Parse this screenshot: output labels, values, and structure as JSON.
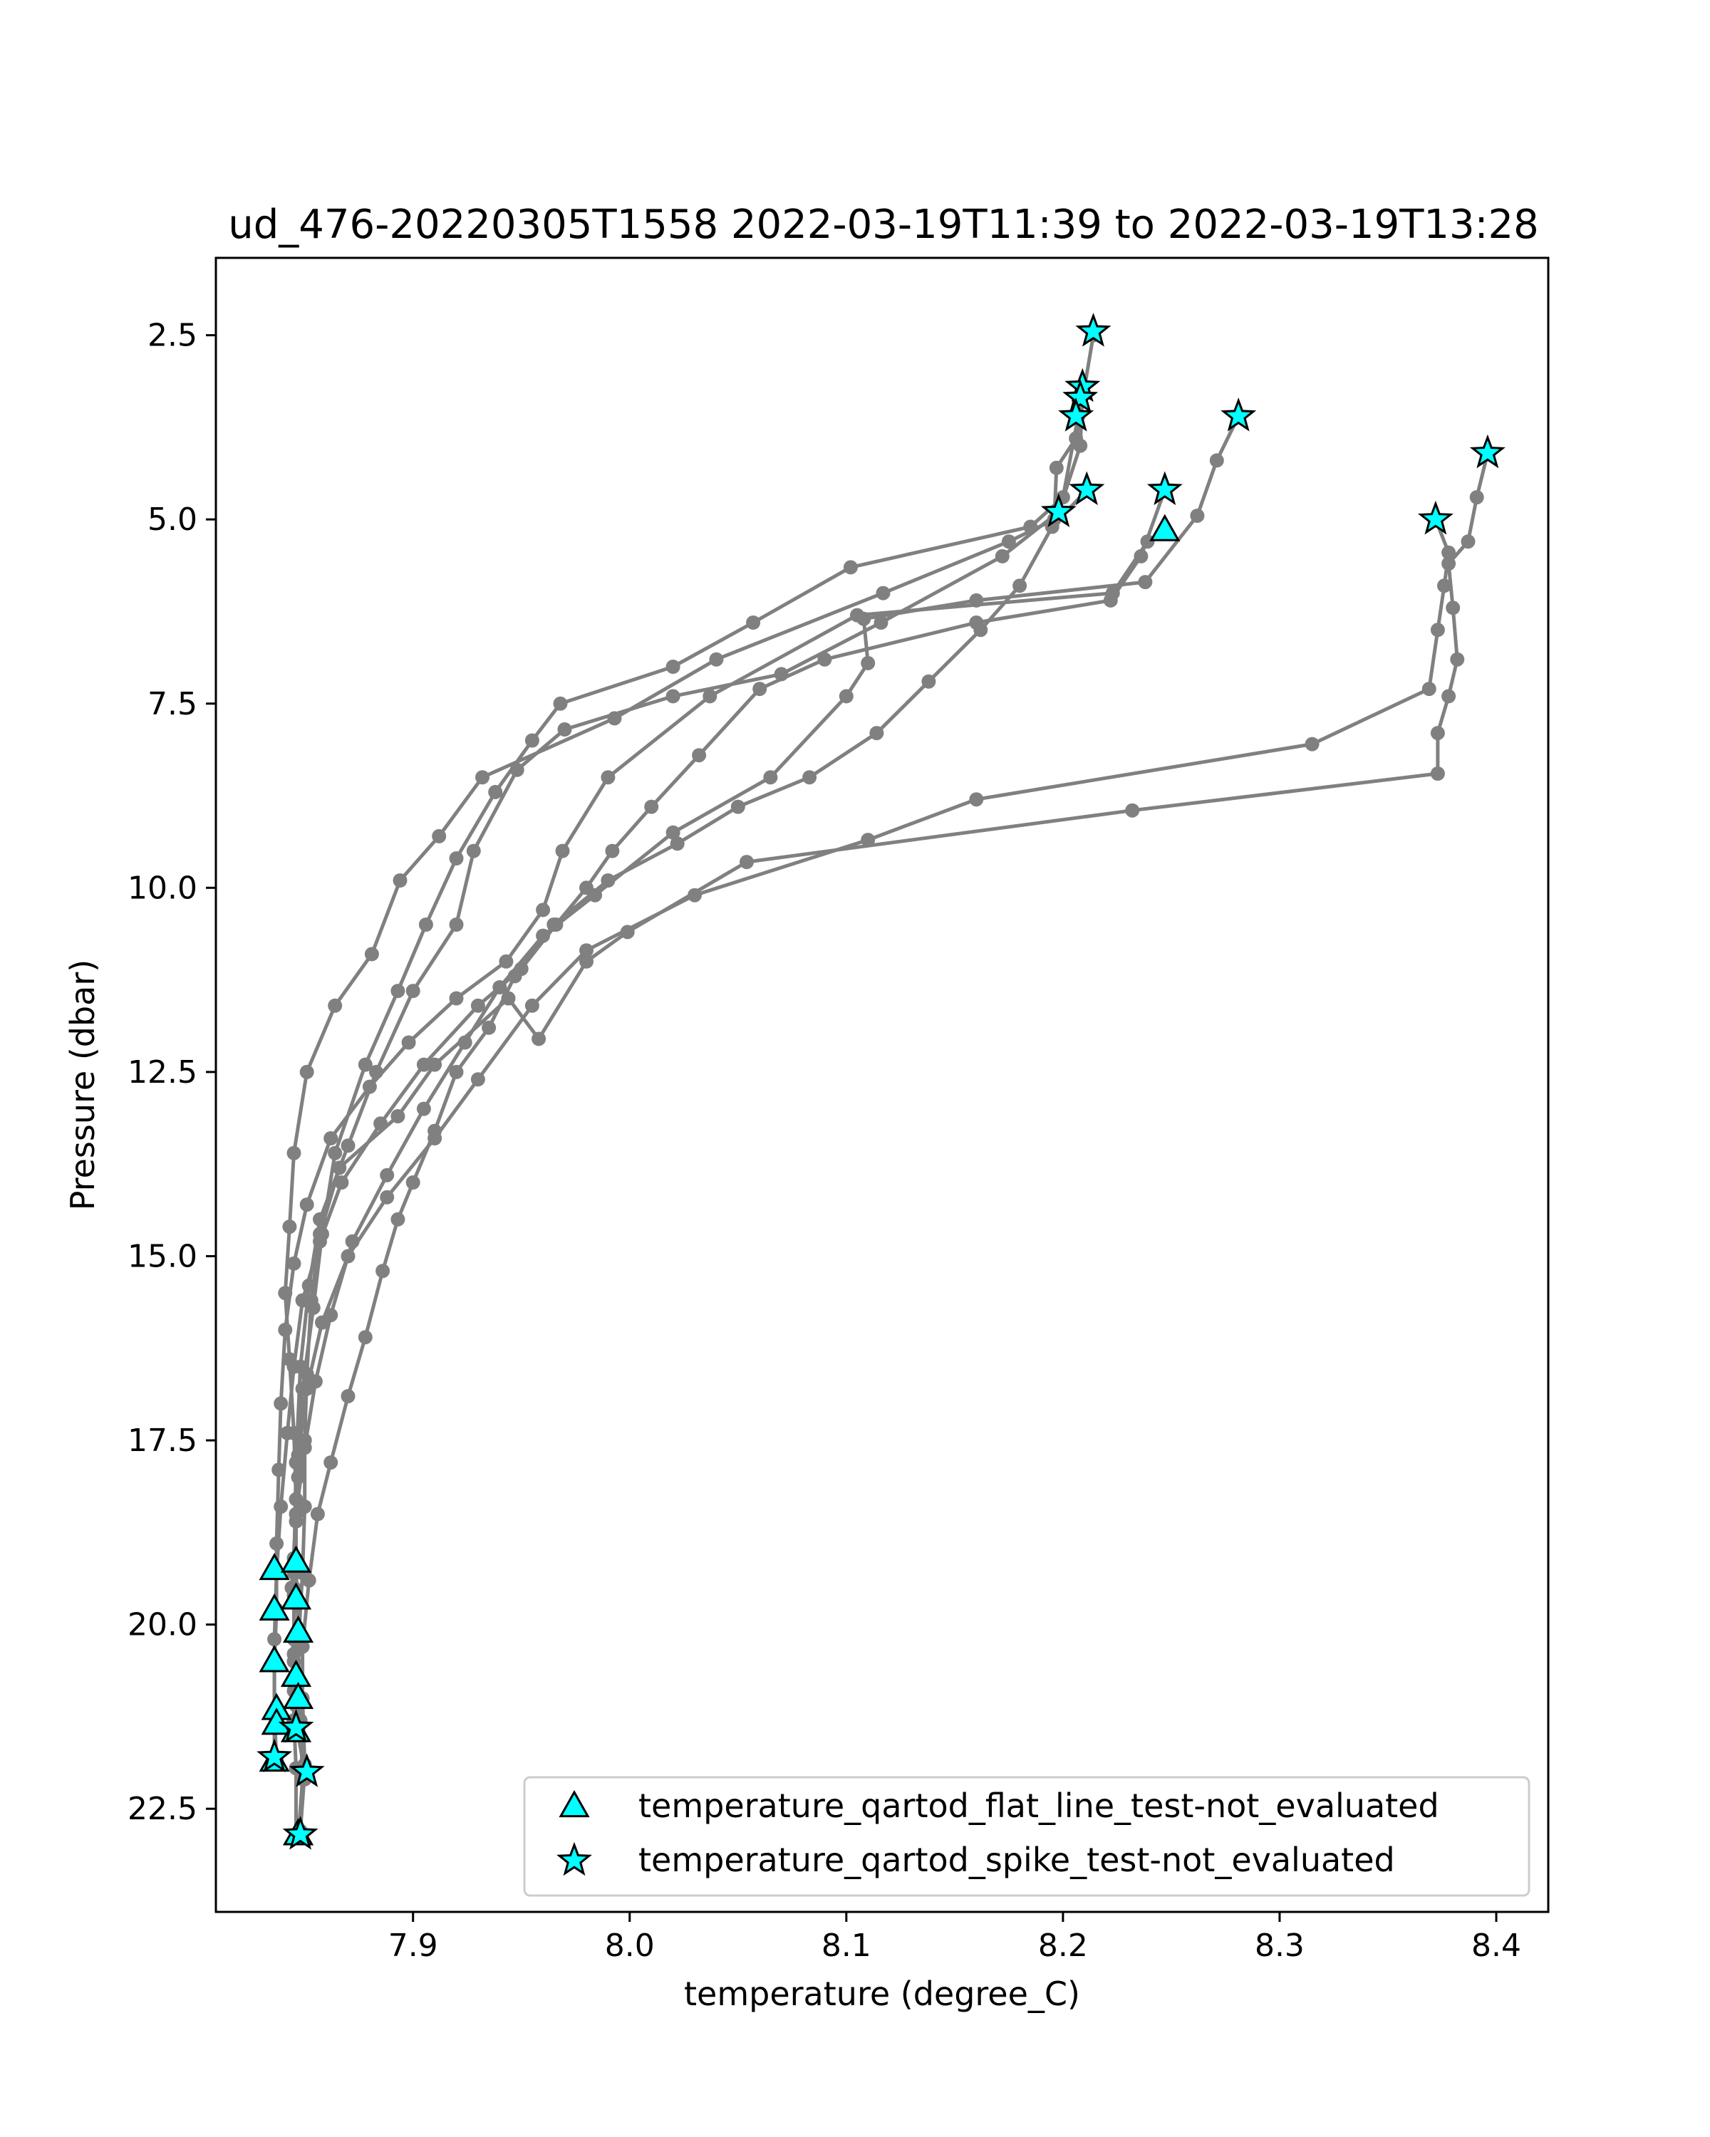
{
  "chart_data": {
    "type": "scatter",
    "title": "ud_476-20220305T1558 2022-03-19T11:39 to 2022-03-19T13:28",
    "xlabel": "temperature (degree_C)",
    "ylabel": "Pressure (dbar)",
    "xlim": [
      7.809,
      8.424
    ],
    "ylim": [
      23.9,
      1.45
    ],
    "y_inverted": true,
    "xticks": [
      "7.9",
      "8.0",
      "8.1",
      "8.2",
      "8.3",
      "8.4"
    ],
    "yticks": [
      "2.5",
      "5.0",
      "7.5",
      "10.0",
      "12.5",
      "15.0",
      "17.5",
      "20.0",
      "22.5"
    ],
    "grid": false,
    "legend_position": "lower right",
    "colors": {
      "profile": "#808080",
      "marker_fill": "#00ffff",
      "marker_edge": "#000000"
    },
    "series": [
      {
        "type": "line",
        "points": [
          [
            8.214,
            2.5
          ],
          [
            8.206,
            3.9
          ],
          [
            8.197,
            4.3
          ],
          [
            8.196,
            5.0
          ],
          [
            8.175,
            5.3
          ],
          [
            8.117,
            6.0
          ],
          [
            8.04,
            6.9
          ],
          [
            7.993,
            7.7
          ],
          [
            7.932,
            8.5
          ],
          [
            7.912,
            9.3
          ],
          [
            7.894,
            9.9
          ],
          [
            7.881,
            10.9
          ],
          [
            7.864,
            11.6
          ],
          [
            7.851,
            12.5
          ],
          [
            7.845,
            13.6
          ],
          [
            7.843,
            14.6
          ],
          [
            7.841,
            15.5
          ],
          [
            7.843,
            16.4
          ],
          [
            7.845,
            17.4
          ],
          [
            7.846,
            18.3
          ],
          [
            7.846,
            19.2
          ],
          [
            7.847,
            20.1
          ],
          [
            7.847,
            21.0
          ],
          [
            7.847,
            21.5
          ],
          [
            7.85,
            22.0
          ],
          [
            7.848,
            22.8
          ]
        ]
      },
      {
        "type": "line",
        "points": [
          [
            8.209,
            3.25
          ],
          [
            8.208,
            4.0
          ],
          [
            8.198,
            4.9
          ],
          [
            8.172,
            5.5
          ],
          [
            8.116,
            6.4
          ],
          [
            8.07,
            7.1
          ],
          [
            8.02,
            7.4
          ],
          [
            7.97,
            7.85
          ],
          [
            7.948,
            8.4
          ],
          [
            7.928,
            9.5
          ],
          [
            7.92,
            10.5
          ],
          [
            7.9,
            11.4
          ],
          [
            7.883,
            12.5
          ],
          [
            7.87,
            13.5
          ],
          [
            7.857,
            14.5
          ],
          [
            7.852,
            15.4
          ],
          [
            7.848,
            16.5
          ],
          [
            7.846,
            17.8
          ],
          [
            7.845,
            19.3
          ],
          [
            7.845,
            20.2
          ],
          [
            7.845,
            20.9
          ],
          [
            7.846,
            21.4
          ]
        ]
      },
      {
        "type": "line",
        "points": [
          [
            8.207,
            3.6
          ],
          [
            8.2,
            4.7
          ],
          [
            8.185,
            5.1
          ],
          [
            8.102,
            5.65
          ],
          [
            8.057,
            6.4
          ],
          [
            8.02,
            7.0
          ],
          [
            7.968,
            7.5
          ],
          [
            7.955,
            8.0
          ],
          [
            7.938,
            8.7
          ],
          [
            7.92,
            9.6
          ],
          [
            7.906,
            10.5
          ],
          [
            7.893,
            11.4
          ],
          [
            7.878,
            12.4
          ],
          [
            7.864,
            13.6
          ],
          [
            7.858,
            14.7
          ],
          [
            7.854,
            15.7
          ],
          [
            7.849,
            16.8
          ],
          [
            7.847,
            18.0
          ],
          [
            7.845,
            19.1
          ],
          [
            7.845,
            19.6
          ],
          [
            7.845,
            20.5
          ],
          [
            7.846,
            21.1
          ]
        ]
      },
      {
        "type": "line",
        "points": [
          [
            8.211,
            4.6
          ],
          [
            8.195,
            5.1
          ],
          [
            8.18,
            5.9
          ],
          [
            8.162,
            6.5
          ],
          [
            8.138,
            7.2
          ],
          [
            8.114,
            7.9
          ],
          [
            8.083,
            8.5
          ],
          [
            8.05,
            8.9
          ],
          [
            8.022,
            9.4
          ],
          [
            7.99,
            9.9
          ],
          [
            7.965,
            10.5
          ],
          [
            7.947,
            11.2
          ],
          [
            7.935,
            11.9
          ],
          [
            7.92,
            12.5
          ],
          [
            7.91,
            13.3
          ],
          [
            7.9,
            14.0
          ],
          [
            7.893,
            14.5
          ],
          [
            7.886,
            15.2
          ],
          [
            7.878,
            16.1
          ],
          [
            7.87,
            16.9
          ],
          [
            7.862,
            17.8
          ],
          [
            7.856,
            18.5
          ],
          [
            7.852,
            19.4
          ],
          [
            7.849,
            20.3
          ],
          [
            7.849,
            21.0
          ],
          [
            7.85,
            21.9
          ],
          [
            7.85,
            22.1
          ]
        ]
      },
      {
        "type": "line",
        "points": [
          [
            8.247,
            4.6
          ],
          [
            8.236,
            5.5
          ],
          [
            8.222,
            6.1
          ],
          [
            8.16,
            6.4
          ],
          [
            8.09,
            6.9
          ],
          [
            8.06,
            7.3
          ],
          [
            8.032,
            8.2
          ],
          [
            8.01,
            8.9
          ],
          [
            7.992,
            9.5
          ],
          [
            7.98,
            10.0
          ],
          [
            7.966,
            10.5
          ],
          [
            7.95,
            11.1
          ],
          [
            7.93,
            11.6
          ],
          [
            7.905,
            12.4
          ],
          [
            7.885,
            13.2
          ],
          [
            7.867,
            14.0
          ],
          [
            7.857,
            14.8
          ],
          [
            7.849,
            15.6
          ],
          [
            7.845,
            16.5
          ],
          [
            7.842,
            17.4
          ],
          [
            7.839,
            18.4
          ],
          [
            7.837,
            19.3
          ],
          [
            7.836,
            20.2
          ],
          [
            7.836,
            21.2
          ],
          [
            7.836,
            21.8
          ]
        ]
      },
      {
        "type": "line",
        "points": [
          [
            8.247,
            5.15
          ],
          [
            8.239,
            5.3
          ],
          [
            8.223,
            6.0
          ],
          [
            8.105,
            6.3
          ],
          [
            8.037,
            7.4
          ],
          [
            7.99,
            8.5
          ],
          [
            7.969,
            9.5
          ],
          [
            7.96,
            10.3
          ],
          [
            7.943,
            11.0
          ],
          [
            7.92,
            11.5
          ],
          [
            7.898,
            12.1
          ],
          [
            7.88,
            12.7
          ],
          [
            7.862,
            13.4
          ],
          [
            7.851,
            14.3
          ],
          [
            7.845,
            15.1
          ],
          [
            7.841,
            16.0
          ],
          [
            7.839,
            17.0
          ],
          [
            7.838,
            17.9
          ],
          [
            7.837,
            18.9
          ],
          [
            7.837,
            19.8
          ],
          [
            7.836,
            20.5
          ],
          [
            7.836,
            21.2
          ],
          [
            7.837,
            21.85
          ]
        ]
      },
      {
        "type": "line",
        "points": [
          [
            8.281,
            3.6
          ],
          [
            8.271,
            4.2
          ],
          [
            8.262,
            4.95
          ],
          [
            8.238,
            5.85
          ],
          [
            8.16,
            6.1
          ],
          [
            8.108,
            6.35
          ],
          [
            8.11,
            6.95
          ],
          [
            8.1,
            7.4
          ],
          [
            8.065,
            8.5
          ],
          [
            8.02,
            9.25
          ],
          [
            7.984,
            10.1
          ],
          [
            7.96,
            10.65
          ],
          [
            7.94,
            11.35
          ],
          [
            7.924,
            12.1
          ],
          [
            7.905,
            13.0
          ],
          [
            7.888,
            13.9
          ],
          [
            7.872,
            14.8
          ],
          [
            7.862,
            15.8
          ],
          [
            7.855,
            16.7
          ],
          [
            7.85,
            17.6
          ],
          [
            7.846,
            18.5
          ],
          [
            7.844,
            19.5
          ]
        ]
      },
      {
        "type": "line",
        "points": [
          [
            8.396,
            4.1
          ],
          [
            8.391,
            4.7
          ],
          [
            8.387,
            5.3
          ],
          [
            8.378,
            5.6
          ],
          [
            8.38,
            6.2
          ],
          [
            8.382,
            6.9
          ],
          [
            8.378,
            7.4
          ],
          [
            8.373,
            7.9
          ],
          [
            8.373,
            8.45
          ],
          [
            8.232,
            8.95
          ],
          [
            8.054,
            9.65
          ],
          [
            7.999,
            10.6
          ],
          [
            7.98,
            11.0
          ],
          [
            7.958,
            12.05
          ],
          [
            7.944,
            11.5
          ],
          [
            7.91,
            12.4
          ],
          [
            7.893,
            13.1
          ],
          [
            7.866,
            13.8
          ],
          [
            7.857,
            14.7
          ],
          [
            7.853,
            15.6
          ],
          [
            7.851,
            16.6
          ],
          [
            7.85,
            17.5
          ],
          [
            7.85,
            18.4
          ],
          [
            7.849,
            19.3
          ],
          [
            7.847,
            20.3
          ],
          [
            7.848,
            21.3
          ],
          [
            7.849,
            22.1
          ],
          [
            7.847,
            22.9
          ]
        ]
      },
      {
        "type": "line",
        "points": [
          [
            8.372,
            5.0
          ],
          [
            8.378,
            5.45
          ],
          [
            8.376,
            5.9
          ],
          [
            8.373,
            6.5
          ],
          [
            8.369,
            7.3
          ],
          [
            8.315,
            8.05
          ],
          [
            8.16,
            8.8
          ],
          [
            8.11,
            9.35
          ],
          [
            8.03,
            10.1
          ],
          [
            7.98,
            10.85
          ],
          [
            7.955,
            11.6
          ],
          [
            7.93,
            12.6
          ],
          [
            7.91,
            13.4
          ],
          [
            7.888,
            14.2
          ],
          [
            7.87,
            15.0
          ],
          [
            7.858,
            15.9
          ],
          [
            7.851,
            16.8
          ],
          [
            7.847,
            17.7
          ],
          [
            7.846,
            18.6
          ],
          [
            7.845,
            19.5
          ],
          [
            7.845,
            20.4
          ],
          [
            7.845,
            21.3
          ],
          [
            7.846,
            21.95
          ],
          [
            7.846,
            22.9
          ]
        ]
      },
      {
        "type": "flag",
        "name": "temperature_qartod_flat_line_test-not_evaluated",
        "marker": "triangle",
        "points": [
          [
            8.247,
            5.15
          ],
          [
            7.836,
            19.25
          ],
          [
            7.846,
            19.15
          ],
          [
            7.836,
            19.8
          ],
          [
            7.846,
            19.65
          ],
          [
            7.847,
            20.1
          ],
          [
            7.836,
            20.5
          ],
          [
            7.846,
            20.7
          ],
          [
            7.847,
            21.0
          ],
          [
            7.837,
            21.15
          ],
          [
            7.837,
            21.35
          ],
          [
            7.846,
            21.45
          ],
          [
            7.836,
            21.85
          ],
          [
            7.847,
            22.85
          ]
        ]
      },
      {
        "type": "flag",
        "name": "temperature_qartod_spike_test-not_evaluated",
        "marker": "star",
        "points": [
          [
            8.214,
            2.45
          ],
          [
            8.209,
            3.2
          ],
          [
            8.208,
            3.35
          ],
          [
            8.206,
            3.6
          ],
          [
            8.281,
            3.6
          ],
          [
            8.396,
            4.1
          ],
          [
            8.247,
            4.6
          ],
          [
            8.211,
            4.6
          ],
          [
            8.198,
            4.9
          ],
          [
            8.372,
            5.0
          ],
          [
            7.836,
            21.8
          ],
          [
            7.846,
            21.4
          ],
          [
            7.851,
            22.0
          ],
          [
            7.848,
            22.85
          ]
        ]
      }
    ]
  }
}
